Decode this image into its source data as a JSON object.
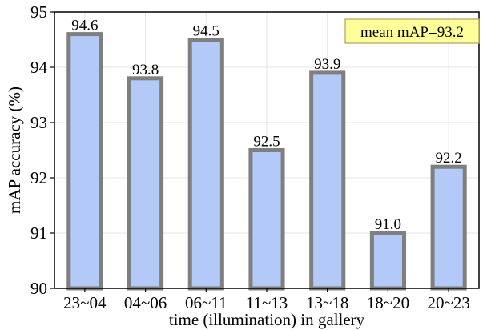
{
  "chart_data": {
    "type": "bar",
    "categories": [
      "23~04",
      "04~06",
      "06~11",
      "11~13",
      "13~18",
      "18~20",
      "20~23"
    ],
    "values": [
      94.6,
      93.8,
      94.5,
      92.5,
      93.9,
      91.0,
      92.2
    ],
    "value_labels": [
      "94.6",
      "93.8",
      "94.5",
      "92.5",
      "93.9",
      "91.0",
      "92.2"
    ],
    "xlabel": "time (illumination) in gallery",
    "ylabel": "mAP accuracy (%)",
    "ylim": [
      90,
      95
    ],
    "yticks": [
      90,
      91,
      92,
      93,
      94,
      95
    ],
    "ytick_labels": [
      "90",
      "91",
      "92",
      "93",
      "94",
      "95"
    ],
    "grid": true,
    "annotation": "mean mAP=93.2",
    "annotation_placement": "top-right",
    "colors": {
      "bar_fill": "#b3c9f7",
      "bar_edge": "#7f7f7f",
      "annotation_fill": "#ffff99",
      "annotation_edge": "#b0a060",
      "grid": "#e6e6e6"
    }
  }
}
